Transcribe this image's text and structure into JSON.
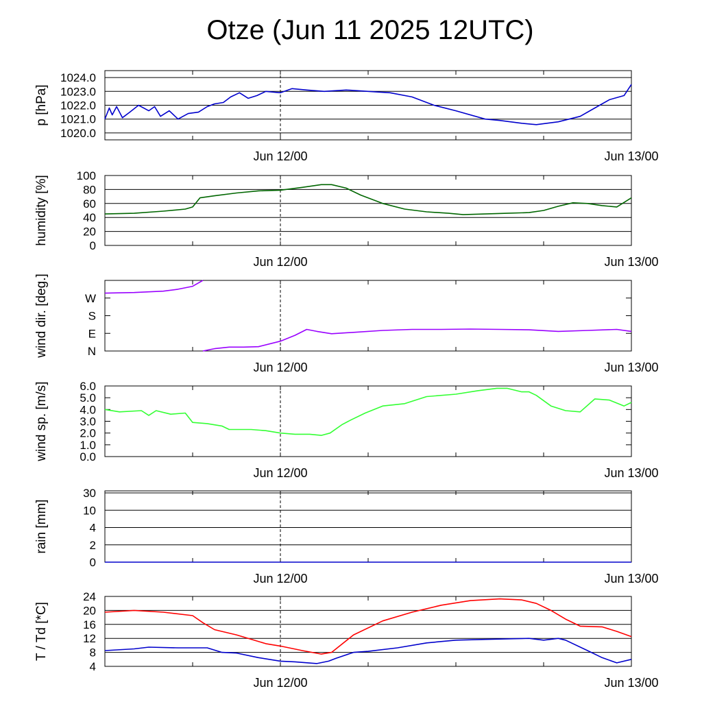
{
  "title": "Otze (Jun 11 2025 12UTC)",
  "x_tick_labels": [
    "Jun 12/00",
    "Jun 13/00"
  ],
  "chart_data": [
    {
      "type": "line",
      "ylabel": "p [hPa]",
      "ylim": [
        1019.5,
        1024.5
      ],
      "y_ticks": [
        1020.0,
        1021.0,
        1022.0,
        1023.0,
        1024.0
      ],
      "y_tick_labels": [
        "1020.0",
        "1021.0",
        "1022.0",
        "1023.0",
        "1024.0"
      ],
      "grid": true,
      "x_range_hours": [
        -12,
        24
      ],
      "x_ticks_hours": [
        0,
        24
      ],
      "series": [
        {
          "color": "#0000cc",
          "x": [
            -12,
            -11.7,
            -11.5,
            -11.2,
            -10.8,
            -10.3,
            -9.7,
            -9,
            -8.6,
            -8.2,
            -7.6,
            -7,
            -6.3,
            -5.6,
            -5,
            -4.5,
            -3.9,
            -3.4,
            -2.8,
            -2.2,
            -1.6,
            -1,
            0,
            0.8,
            1.8,
            3,
            4.5,
            6,
            7.5,
            9,
            10.5,
            12,
            14,
            15,
            16.5,
            17.5,
            19,
            20.5,
            21.5,
            22.5,
            23.5,
            24
          ],
          "y": [
            1021.0,
            1021.8,
            1021.3,
            1021.9,
            1021.1,
            1021.5,
            1022.0,
            1021.6,
            1021.9,
            1021.2,
            1021.6,
            1021.0,
            1021.4,
            1021.5,
            1021.9,
            1022.1,
            1022.2,
            1022.6,
            1022.9,
            1022.5,
            1022.7,
            1023.0,
            1022.9,
            1023.2,
            1023.1,
            1023.0,
            1023.1,
            1023.0,
            1022.9,
            1022.6,
            1022.0,
            1021.6,
            1021.0,
            1020.9,
            1020.7,
            1020.6,
            1020.8,
            1021.2,
            1021.8,
            1022.4,
            1022.7,
            1023.5
          ]
        }
      ]
    },
    {
      "type": "line",
      "ylabel": "humidity [%]",
      "ylim": [
        0,
        100
      ],
      "y_ticks": [
        0,
        20,
        40,
        60,
        80,
        100
      ],
      "y_tick_labels": [
        "0",
        "20",
        "40",
        "60",
        "80",
        "100"
      ],
      "grid": true,
      "x_range_hours": [
        -12,
        24
      ],
      "x_ticks_hours": [
        0,
        24
      ],
      "series": [
        {
          "color": "#006600",
          "x": [
            -12,
            -10,
            -8,
            -6.5,
            -6,
            -5.5,
            -4.5,
            -3,
            -1.5,
            0,
            1.5,
            2.8,
            3.5,
            4.5,
            5.5,
            7,
            8.5,
            10,
            11.5,
            12.5,
            14,
            15.5,
            17,
            18,
            19,
            20,
            21,
            22,
            23,
            24
          ],
          "y": [
            45,
            46,
            49,
            52,
            55,
            68,
            71,
            75,
            78,
            79,
            83,
            87,
            87,
            82,
            72,
            60,
            52,
            48,
            46,
            44,
            45,
            46,
            47,
            50,
            56,
            61,
            60,
            57,
            55,
            68
          ]
        }
      ]
    },
    {
      "type": "line",
      "ylabel": "wind dir. [deg.]",
      "ylim": [
        0,
        360
      ],
      "y_ticks": [
        0,
        90,
        180,
        270
      ],
      "y_tick_labels": [
        "N",
        "E",
        "S",
        "W"
      ],
      "grid": false,
      "x_range_hours": [
        -12,
        24
      ],
      "x_ticks_hours": [
        0,
        24
      ],
      "series": [
        {
          "color": "#9900ff",
          "x": [
            -12,
            -10,
            -8,
            -7,
            -6,
            -5.3
          ],
          "y": [
            295,
            298,
            305,
            315,
            330,
            360
          ]
        },
        {
          "color": "#9900ff",
          "x": [
            -5.3,
            -4.5,
            -3.5,
            -2.5,
            -1.5,
            0,
            1,
            1.8,
            2.5,
            3.5,
            5,
            7,
            9,
            11,
            13,
            15,
            17,
            19,
            21,
            23,
            24
          ],
          "y": [
            0,
            12,
            20,
            20,
            22,
            50,
            80,
            110,
            100,
            88,
            95,
            105,
            110,
            110,
            112,
            110,
            108,
            100,
            105,
            110,
            100
          ]
        }
      ]
    },
    {
      "type": "line",
      "ylabel": "wind sp. [m/s]",
      "ylim": [
        0,
        6
      ],
      "y_ticks": [
        0,
        1,
        2,
        3,
        4,
        5,
        6
      ],
      "y_tick_labels": [
        "0.0",
        "1.0",
        "2.0",
        "3.0",
        "4.0",
        "5.0",
        "6.0"
      ],
      "grid": false,
      "x_range_hours": [
        -12,
        24
      ],
      "x_ticks_hours": [
        0,
        24
      ],
      "series": [
        {
          "color": "#33ff33",
          "x": [
            -12,
            -11,
            -9.5,
            -9,
            -8.5,
            -7.5,
            -6.5,
            -6,
            -5,
            -4,
            -3.5,
            -2,
            -1,
            0,
            1,
            2,
            2.8,
            3.4,
            4.2,
            4.8,
            5.8,
            7,
            8.5,
            10,
            12,
            13.5,
            14.8,
            15.5,
            16.5,
            17,
            17.5,
            18.5,
            19.5,
            20.5,
            21.5,
            22.5,
            23.5,
            24
          ],
          "y": [
            4.0,
            3.8,
            3.9,
            3.5,
            3.9,
            3.6,
            3.7,
            2.9,
            2.8,
            2.6,
            2.3,
            2.3,
            2.2,
            2.0,
            1.9,
            1.9,
            1.8,
            2.0,
            2.7,
            3.1,
            3.7,
            4.3,
            4.5,
            5.1,
            5.3,
            5.6,
            5.8,
            5.8,
            5.5,
            5.5,
            5.2,
            4.3,
            3.9,
            3.8,
            4.9,
            4.8,
            4.3,
            4.6
          ]
        }
      ]
    },
    {
      "type": "line",
      "ylabel": "rain [mm]",
      "y_ticks": [
        0,
        2,
        4,
        10,
        30
      ],
      "y_tick_labels": [
        "0",
        "2",
        "4",
        "10",
        "30"
      ],
      "y_scale": "nonlinear",
      "grid": true,
      "x_range_hours": [
        -12,
        24
      ],
      "x_ticks_hours": [
        0,
        24
      ],
      "series": [
        {
          "color": "#0000cc",
          "x": [
            -12,
            24
          ],
          "y": [
            0,
            0
          ]
        }
      ]
    },
    {
      "type": "line",
      "ylabel": "T / Td [*C]",
      "ylim": [
        4,
        24
      ],
      "y_ticks": [
        4,
        8,
        12,
        16,
        20,
        24
      ],
      "y_tick_labels": [
        "4",
        "8",
        "12",
        "16",
        "20",
        "24"
      ],
      "grid": true,
      "x_range_hours": [
        -12,
        24
      ],
      "x_ticks_hours": [
        0,
        24
      ],
      "series": [
        {
          "color": "#ff0000",
          "x": [
            -12,
            -10,
            -8,
            -6,
            -5.3,
            -4.5,
            -3,
            -1,
            0,
            1.5,
            2.8,
            3.5,
            5,
            7,
            9,
            11,
            13,
            15,
            16.5,
            17.5,
            18.5,
            19.5,
            20.5,
            22,
            23,
            24
          ],
          "y": [
            19.5,
            20,
            19.5,
            18.5,
            16.5,
            14.5,
            13,
            10.5,
            9.8,
            8.5,
            7.5,
            8,
            13,
            17,
            19.5,
            21.5,
            22.8,
            23.3,
            23,
            22,
            20,
            17.5,
            15.5,
            15.3,
            14,
            12.5
          ]
        },
        {
          "color": "#0000cc",
          "x": [
            -12,
            -10,
            -9,
            -7,
            -6,
            -5,
            -4,
            -3,
            -1.5,
            0,
            1,
            2.5,
            3.3,
            3.8,
            5,
            6,
            8,
            10,
            12,
            14,
            15,
            16,
            17,
            18,
            19,
            19.5,
            21,
            22,
            23,
            24
          ],
          "y": [
            8.5,
            9,
            9.5,
            9.3,
            9.3,
            9.3,
            8,
            7.8,
            6.5,
            5.5,
            5.3,
            4.8,
            5.5,
            6.3,
            8,
            8.3,
            9.3,
            10.7,
            11.5,
            11.7,
            11.8,
            11.9,
            12,
            11.5,
            12,
            11.5,
            8.5,
            6.5,
            5,
            6
          ]
        }
      ]
    }
  ]
}
